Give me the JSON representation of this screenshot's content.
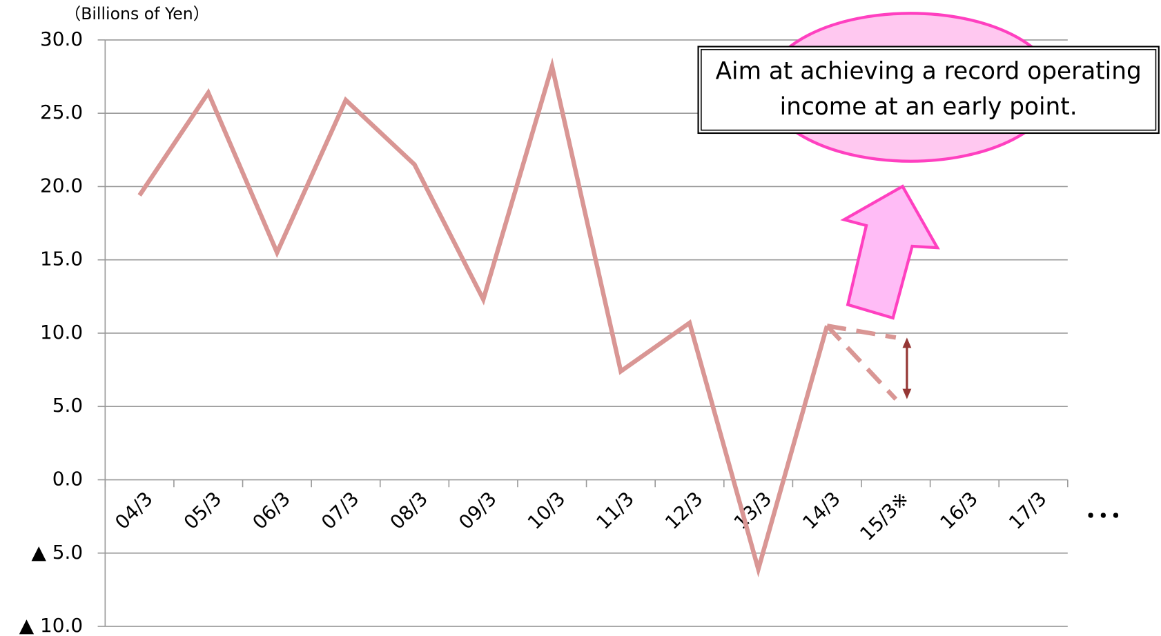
{
  "chart_data": {
    "type": "line",
    "unit_label": "（Billions of Yen）",
    "categories": [
      "04/3",
      "05/3",
      "06/3",
      "07/3",
      "08/3",
      "09/3",
      "10/3",
      "11/3",
      "12/3",
      "13/3",
      "14/3",
      "15/3※",
      "16/3",
      "17/3"
    ],
    "series": [
      {
        "color": "#d99694",
        "values": [
          19.4,
          26.4,
          15.5,
          25.9,
          21.5,
          12.3,
          28.2,
          7.4,
          10.7,
          -6.1,
          10.5,
          null,
          null,
          null
        ]
      },
      {
        "color": "#d99694",
        "dashed": true,
        "values": [
          null,
          null,
          null,
          null,
          null,
          null,
          null,
          null,
          null,
          null,
          10.5,
          9.7,
          null,
          null
        ]
      },
      {
        "color": "#d99694",
        "dashed": true,
        "values": [
          null,
          null,
          null,
          null,
          null,
          null,
          null,
          null,
          null,
          null,
          10.5,
          5.5,
          null,
          null
        ]
      }
    ],
    "ylim": [
      -10,
      30
    ],
    "yticks": [
      {
        "value": -10,
        "label": "▲ 10.0"
      },
      {
        "value": -5,
        "label": "▲ 5.0"
      },
      {
        "value": 0,
        "label": "0.0"
      },
      {
        "value": 5,
        "label": "5.0"
      },
      {
        "value": 10,
        "label": "10.0"
      },
      {
        "value": 15,
        "label": "15.0"
      },
      {
        "value": 20,
        "label": "20.0"
      },
      {
        "value": 25,
        "label": "25.0"
      },
      {
        "value": 30,
        "label": "30.0"
      }
    ],
    "grid": true,
    "annotation": [
      "Aim at achieving a record operating",
      "income at an early point."
    ],
    "continuation": "･･･"
  }
}
